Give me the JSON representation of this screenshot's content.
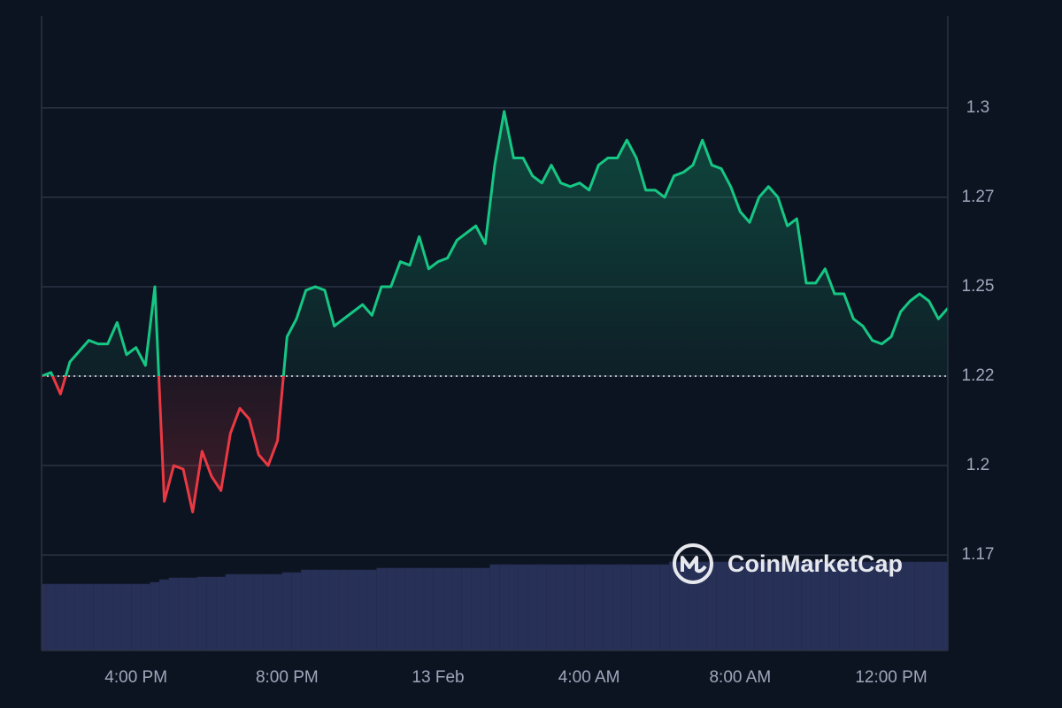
{
  "chart_data": {
    "type": "line",
    "watermark": "CoinMarketCap",
    "x": [
      13.5,
      13.75,
      14,
      14.25,
      14.5,
      14.75,
      15,
      15.25,
      15.5,
      15.75,
      16,
      16.25,
      16.5,
      16.75,
      17,
      17.25,
      17.5,
      17.75,
      18,
      18.25,
      18.5,
      18.75,
      19,
      19.25,
      19.5,
      19.75,
      20,
      20.25,
      20.5,
      20.75,
      21,
      21.25,
      21.5,
      21.75,
      22,
      22.25,
      22.5,
      22.75,
      23,
      23.25,
      23.5,
      23.75,
      24,
      24.25,
      24.5,
      24.75,
      25,
      25.25,
      25.5,
      25.75,
      26,
      26.25,
      26.5,
      26.75,
      27,
      27.25,
      27.5,
      27.75,
      28,
      28.25,
      28.5,
      28.75,
      29,
      29.25,
      29.5,
      29.75,
      30,
      30.25,
      30.5,
      30.75,
      31,
      31.25,
      31.5,
      31.75,
      32,
      32.25,
      32.5,
      32.75,
      33,
      33.25,
      33.5,
      33.75,
      34,
      34.25,
      34.5,
      34.75,
      35,
      35.25,
      35.5,
      35.75,
      36,
      36.25,
      36.5,
      36.75,
      37,
      37.25,
      37.5
    ],
    "series": [
      {
        "color": "#16c784",
        "down_color": "#ea3943",
        "values": [
          1.225,
          1.226,
          1.22,
          1.229,
          1.232,
          1.235,
          1.234,
          1.234,
          1.24,
          1.231,
          1.233,
          1.228,
          1.25,
          1.19,
          1.2,
          1.199,
          1.187,
          1.204,
          1.197,
          1.193,
          1.209,
          1.216,
          1.213,
          1.203,
          1.2,
          1.207,
          1.236,
          1.241,
          1.249,
          1.25,
          1.249,
          1.239,
          1.241,
          1.243,
          1.245,
          1.242,
          1.25,
          1.25,
          1.257,
          1.256,
          1.264,
          1.255,
          1.257,
          1.258,
          1.263,
          1.265,
          1.267,
          1.262,
          1.284,
          1.299,
          1.286,
          1.286,
          1.281,
          1.279,
          1.284,
          1.279,
          1.278,
          1.279,
          1.277,
          1.284,
          1.286,
          1.286,
          1.291,
          1.286,
          1.277,
          1.277,
          1.275,
          1.281,
          1.282,
          1.284,
          1.291,
          1.284,
          1.283,
          1.278,
          1.271,
          1.268,
          1.275,
          1.278,
          1.275,
          1.267,
          1.269,
          1.251,
          1.251,
          1.255,
          1.248,
          1.248,
          1.241,
          1.239,
          1.235,
          1.234,
          1.236,
          1.243,
          1.246,
          1.248,
          1.246,
          1.241,
          1.244
        ]
      },
      {
        "axis": "y2",
        "color": "#2d3660",
        "values": [
          75,
          75,
          75,
          75,
          75,
          75,
          75,
          75,
          75,
          75,
          75,
          75,
          77,
          80,
          82,
          82,
          82,
          83,
          83,
          83,
          86,
          86,
          86,
          86,
          86,
          86,
          88,
          88,
          91,
          91,
          91,
          91,
          91,
          91,
          91,
          91,
          93,
          93,
          93,
          93,
          93,
          93,
          93,
          93,
          93,
          93,
          93,
          93,
          97,
          97,
          97,
          97,
          97,
          97,
          97,
          97,
          97,
          97,
          97,
          97,
          97,
          97,
          97,
          97,
          97,
          97,
          97,
          100,
          100,
          100,
          100,
          100,
          100,
          100,
          100,
          100,
          100,
          100,
          100,
          100,
          100,
          100,
          100,
          100,
          100,
          100,
          100,
          100,
          100,
          100,
          100,
          100,
          100,
          100,
          100,
          100,
          100
        ]
      }
    ],
    "baseline": 1.225,
    "xlim": [
      13.5,
      37.5
    ],
    "xticks": [
      {
        "value": 16,
        "label": "4:00 PM"
      },
      {
        "value": 20,
        "label": "8:00 PM"
      },
      {
        "value": 24,
        "label": "13 Feb"
      },
      {
        "value": 28,
        "label": "4:00 AM"
      },
      {
        "value": 32,
        "label": "8:00 AM"
      },
      {
        "value": 36,
        "label": "12:00 PM"
      }
    ],
    "ylim": [
      1.1483,
      1.3257
    ],
    "yticks": [
      {
        "value": 1.175,
        "label": "1.17"
      },
      1.2,
      {
        "value": 1.225,
        "label": "1.22"
      },
      1.25,
      {
        "value": 1.275,
        "label": "1.27"
      },
      1.3
    ],
    "y2lim": [
      0,
      100
    ],
    "grid": true
  }
}
